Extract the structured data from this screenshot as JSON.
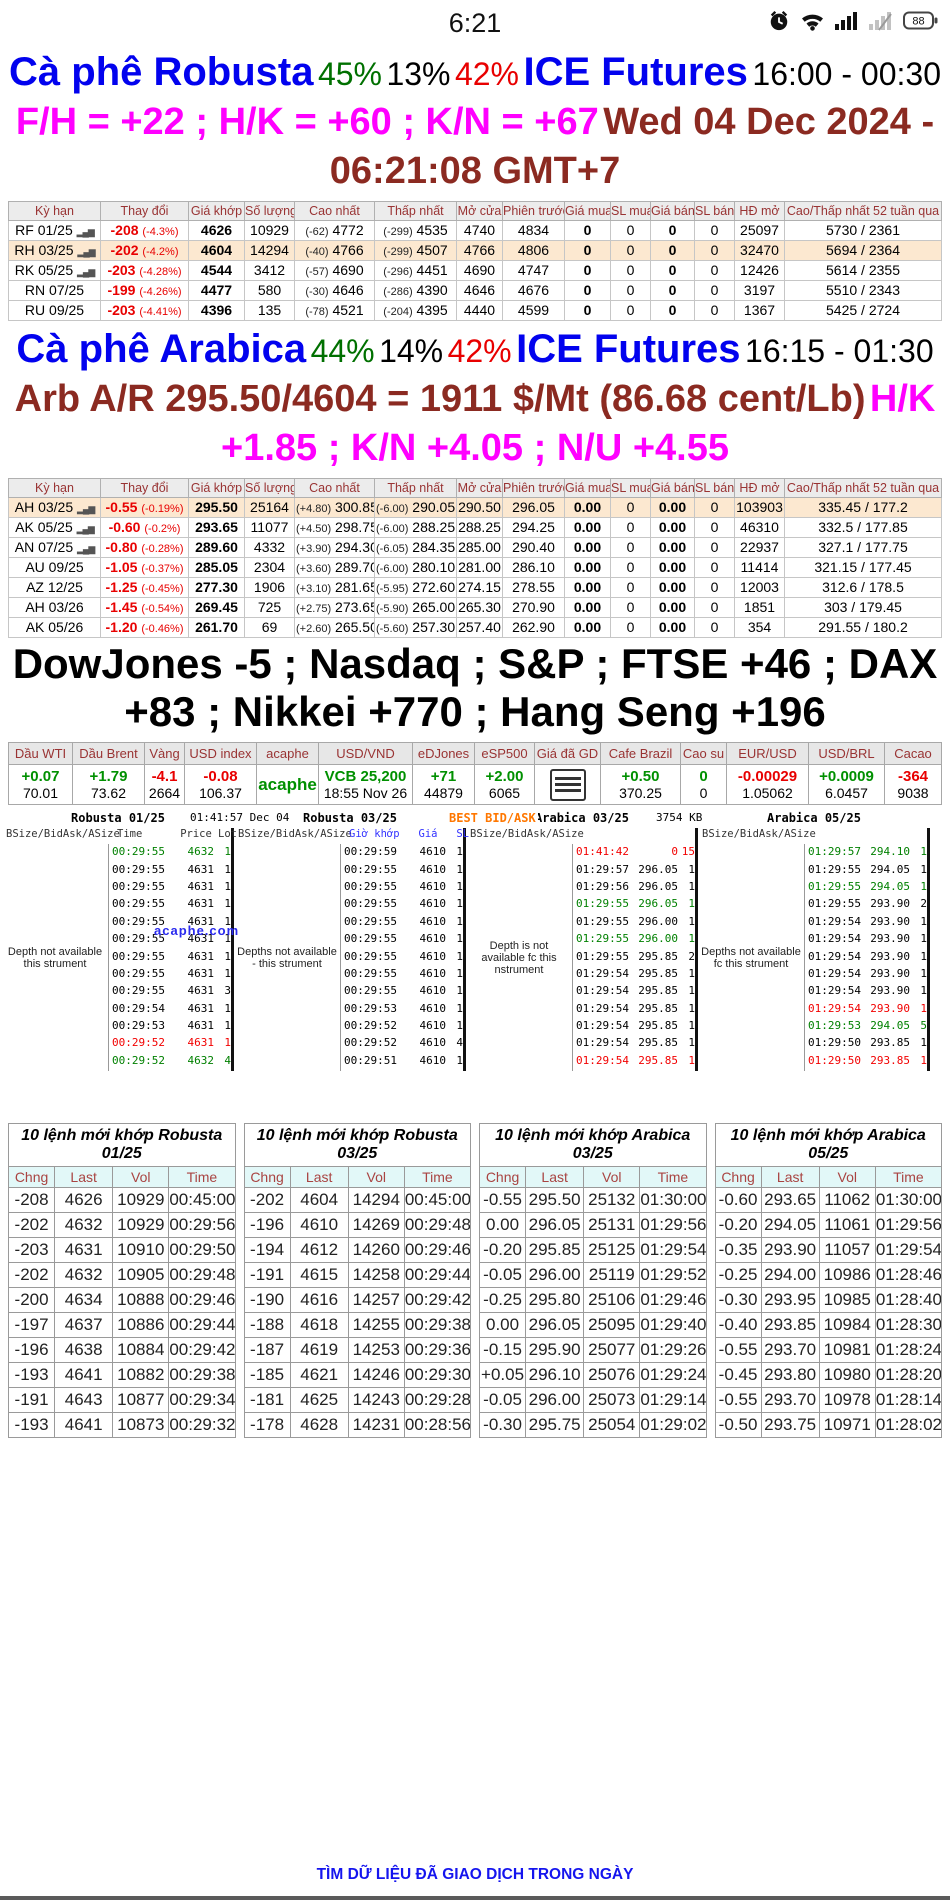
{
  "status_bar": {
    "time": "6:21",
    "battery": "88"
  },
  "robusta_header": {
    "title": "Cà phê Robusta",
    "p1": "45%",
    "p2": "13%",
    "p3": "42%",
    "exchange": "ICE Futures",
    "session": "16:00 - 00:30",
    "spreads": "F/H = +22 ; H/K = +60 ; K/N = +67",
    "datetime": "Wed 04 Dec 2024 - 06:21:08 GMT+7"
  },
  "arabica_header": {
    "title": "Cà phê Arabica",
    "p1": "44%",
    "p2": "14%",
    "p3": "42%",
    "exchange": "ICE Futures",
    "session": "16:15 - 01:30",
    "quote": "Arb A/R 295.50/4604 = 1911 $/Mt (86.68 cent/Lb)",
    "spreads": "H/K +1.85 ; K/N +4.05 ; N/U +4.55"
  },
  "futures_cols": [
    "Kỳ hạn",
    "Thay đổi",
    "Giá khớp",
    "Số lượng",
    "Cao nhất",
    "Thấp nhất",
    "Mở cửa",
    "Phiên trước",
    "Giá mua",
    "SL mua",
    "Giá bán",
    "SL bán",
    "HĐ mở",
    "Cao/Thấp nhất 52 tuần qua"
  ],
  "robusta_rows": [
    {
      "c": "RF 01/25",
      "chart": true,
      "ch": "-208",
      "pct": "(-4.3%)",
      "last": "4626",
      "vol": "10929",
      "hd": "(-62)",
      "hi": "4772",
      "ld": "(-299)",
      "lo": "4535",
      "op": "4740",
      "pr": "4834",
      "b": "0",
      "bs": "0",
      "a": "0",
      "as": "0",
      "oi": "25097",
      "r52": "5730 / 2361",
      "hl": false
    },
    {
      "c": "RH 03/25",
      "chart": true,
      "ch": "-202",
      "pct": "(-4.2%)",
      "last": "4604",
      "vol": "14294",
      "hd": "(-40)",
      "hi": "4766",
      "ld": "(-299)",
      "lo": "4507",
      "op": "4766",
      "pr": "4806",
      "b": "0",
      "bs": "0",
      "a": "0",
      "as": "0",
      "oi": "32470",
      "r52": "5694 / 2364",
      "hl": true
    },
    {
      "c": "RK 05/25",
      "chart": true,
      "ch": "-203",
      "pct": "(-4.28%)",
      "last": "4544",
      "vol": "3412",
      "hd": "(-57)",
      "hi": "4690",
      "ld": "(-296)",
      "lo": "4451",
      "op": "4690",
      "pr": "4747",
      "b": "0",
      "bs": "0",
      "a": "0",
      "as": "0",
      "oi": "12426",
      "r52": "5614 / 2355",
      "hl": false
    },
    {
      "c": "RN 07/25",
      "chart": false,
      "ch": "-199",
      "pct": "(-4.26%)",
      "last": "4477",
      "vol": "580",
      "hd": "(-30)",
      "hi": "4646",
      "ld": "(-286)",
      "lo": "4390",
      "op": "4646",
      "pr": "4676",
      "b": "0",
      "bs": "0",
      "a": "0",
      "as": "0",
      "oi": "3197",
      "r52": "5510 / 2343",
      "hl": false
    },
    {
      "c": "RU 09/25",
      "chart": false,
      "ch": "-203",
      "pct": "(-4.41%)",
      "last": "4396",
      "vol": "135",
      "hd": "(-78)",
      "hi": "4521",
      "ld": "(-204)",
      "lo": "4395",
      "op": "4440",
      "pr": "4599",
      "b": "0",
      "bs": "0",
      "a": "0",
      "as": "0",
      "oi": "1367",
      "r52": "5425 / 2724",
      "hl": false
    }
  ],
  "arabica_rows": [
    {
      "c": "AH 03/25",
      "chart": true,
      "ch": "-0.55",
      "pct": "(-0.19%)",
      "last": "295.50",
      "vol": "25164",
      "hd": "(+4.80)",
      "hi": "300.85",
      "ld": "(-6.00)",
      "lo": "290.05",
      "op": "290.50",
      "pr": "296.05",
      "b": "0.00",
      "bs": "0",
      "a": "0.00",
      "as": "0",
      "oi": "103903",
      "r52": "335.45 / 177.2",
      "hl": true
    },
    {
      "c": "AK 05/25",
      "chart": true,
      "ch": "-0.60",
      "pct": "(-0.2%)",
      "last": "293.65",
      "vol": "11077",
      "hd": "(+4.50)",
      "hi": "298.75",
      "ld": "(-6.00)",
      "lo": "288.25",
      "op": "288.25",
      "pr": "294.25",
      "b": "0.00",
      "bs": "0",
      "a": "0.00",
      "as": "0",
      "oi": "46310",
      "r52": "332.5 / 177.85",
      "hl": false
    },
    {
      "c": "AN 07/25",
      "chart": true,
      "ch": "-0.80",
      "pct": "(-0.28%)",
      "last": "289.60",
      "vol": "4332",
      "hd": "(+3.90)",
      "hi": "294.30",
      "ld": "(-6.05)",
      "lo": "284.35",
      "op": "285.00",
      "pr": "290.40",
      "b": "0.00",
      "bs": "0",
      "a": "0.00",
      "as": "0",
      "oi": "22937",
      "r52": "327.1 / 177.75",
      "hl": false
    },
    {
      "c": "AU 09/25",
      "chart": false,
      "ch": "-1.05",
      "pct": "(-0.37%)",
      "last": "285.05",
      "vol": "2304",
      "hd": "(+3.60)",
      "hi": "289.70",
      "ld": "(-6.00)",
      "lo": "280.10",
      "op": "281.00",
      "pr": "286.10",
      "b": "0.00",
      "bs": "0",
      "a": "0.00",
      "as": "0",
      "oi": "11414",
      "r52": "321.15 / 177.45",
      "hl": false
    },
    {
      "c": "AZ 12/25",
      "chart": false,
      "ch": "-1.25",
      "pct": "(-0.45%)",
      "last": "277.30",
      "vol": "1906",
      "hd": "(+3.10)",
      "hi": "281.65",
      "ld": "(-5.95)",
      "lo": "272.60",
      "op": "274.15",
      "pr": "278.55",
      "b": "0.00",
      "bs": "0",
      "a": "0.00",
      "as": "0",
      "oi": "12003",
      "r52": "312.6 / 178.5",
      "hl": false
    },
    {
      "c": "AH 03/26",
      "chart": false,
      "ch": "-1.45",
      "pct": "(-0.54%)",
      "last": "269.45",
      "vol": "725",
      "hd": "(+2.75)",
      "hi": "273.65",
      "ld": "(-5.90)",
      "lo": "265.00",
      "op": "265.30",
      "pr": "270.90",
      "b": "0.00",
      "bs": "0",
      "a": "0.00",
      "as": "0",
      "oi": "1851",
      "r52": "303 / 179.45",
      "hl": false
    },
    {
      "c": "AK 05/26",
      "chart": false,
      "ch": "-1.20",
      "pct": "(-0.46%)",
      "last": "261.70",
      "vol": "69",
      "hd": "(+2.60)",
      "hi": "265.50",
      "ld": "(-5.60)",
      "lo": "257.30",
      "op": "257.40",
      "pr": "262.90",
      "b": "0.00",
      "bs": "0",
      "a": "0.00",
      "as": "0",
      "oi": "354",
      "r52": "291.55 / 180.2",
      "hl": false
    }
  ],
  "indices_line": "DowJones -5 ; Nasdaq ; S&P ; FTSE +46 ; DAX +83 ; Nikkei +770 ; Hang Seng +196",
  "indices": [
    {
      "label": "Dầu WTI",
      "value": "+0.07",
      "color": "green",
      "sub": "70.01"
    },
    {
      "label": "Dầu Brent",
      "value": "+1.79",
      "color": "green",
      "sub": "73.62"
    },
    {
      "label": "Vàng",
      "value": "-4.1",
      "color": "red",
      "sub": "2664"
    },
    {
      "label": "USD index",
      "value": "-0.08",
      "color": "red",
      "sub": "106.37"
    },
    {
      "label": "acaphe",
      "value": "acaphe",
      "color": "green",
      "big": true
    },
    {
      "label": "USD/VND",
      "value": "VCB 25,200",
      "color": "green",
      "sub": "18:55 Nov 26"
    },
    {
      "label": "eDJones",
      "value": "+71",
      "color": "green",
      "sub": "44879"
    },
    {
      "label": "eSP500",
      "value": "+2.00",
      "color": "green",
      "sub": "6065"
    },
    {
      "label": "Giá đã GD",
      "icon": "menu"
    },
    {
      "label": "Cafe Brazil",
      "value": "+0.50",
      "color": "green",
      "sub": "370.25"
    },
    {
      "label": "Cao su",
      "value": "0",
      "color": "green",
      "sub": "0"
    },
    {
      "label": "EUR/USD",
      "value": "-0.00029",
      "color": "red",
      "sub": "1.05062"
    },
    {
      "label": "USD/BRL",
      "value": "+0.0009",
      "color": "green",
      "sub": "6.0457"
    },
    {
      "label": "Cacao",
      "value": "-364",
      "color": "red",
      "sub": "9038"
    }
  ],
  "depth": {
    "timestamp": "01:41:57 Dec 04",
    "best_label": "BEST BID/ASK",
    "size_label": "3754 KB",
    "watermark": "acaphe.com",
    "panels": [
      {
        "title": "Robusta 01/25",
        "cols": [
          "BSize/Bid",
          "Ask/ASize"
        ],
        "tcols": [
          "Time",
          "Price",
          "Lot"
        ],
        "tblue": false,
        "note": "Depth not available this strument",
        "trades": [
          [
            "00:29:55",
            "4632",
            "1",
            "g"
          ],
          [
            "00:29:55",
            "4631",
            "1",
            ""
          ],
          [
            "00:29:55",
            "4631",
            "1",
            ""
          ],
          [
            "00:29:55",
            "4631",
            "1",
            ""
          ],
          [
            "00:29:55",
            "4631",
            "1",
            ""
          ],
          [
            "00:29:55",
            "4631",
            "1",
            ""
          ],
          [
            "00:29:55",
            "4631",
            "1",
            ""
          ],
          [
            "00:29:55",
            "4631",
            "1",
            ""
          ],
          [
            "00:29:55",
            "4631",
            "3",
            ""
          ],
          [
            "00:29:54",
            "4631",
            "1",
            ""
          ],
          [
            "00:29:53",
            "4631",
            "1",
            ""
          ],
          [
            "00:29:52",
            "4631",
            "1",
            "r"
          ],
          [
            "00:29:52",
            "4632",
            "4",
            "g"
          ]
        ]
      },
      {
        "title": "Robusta 03/25",
        "cols": [
          "BSize/Bid",
          "Ask/ASize"
        ],
        "tcols": [
          "Giờ khớp",
          "Giá",
          "SL"
        ],
        "tblue": true,
        "note": "Depths not available - this strument",
        "trades": [
          [
            "00:29:59",
            "4610",
            "1",
            ""
          ],
          [
            "00:29:55",
            "4610",
            "1",
            ""
          ],
          [
            "00:29:55",
            "4610",
            "1",
            ""
          ],
          [
            "00:29:55",
            "4610",
            "1",
            ""
          ],
          [
            "00:29:55",
            "4610",
            "1",
            ""
          ],
          [
            "00:29:55",
            "4610",
            "1",
            ""
          ],
          [
            "00:29:55",
            "4610",
            "1",
            ""
          ],
          [
            "00:29:55",
            "4610",
            "1",
            ""
          ],
          [
            "00:29:55",
            "4610",
            "1",
            ""
          ],
          [
            "00:29:53",
            "4610",
            "1",
            ""
          ],
          [
            "00:29:52",
            "4610",
            "1",
            ""
          ],
          [
            "00:29:52",
            "4610",
            "4",
            ""
          ],
          [
            "00:29:51",
            "4610",
            "1",
            ""
          ]
        ]
      },
      {
        "title": "Arabica 03/25",
        "cols": [
          "BSize/Bid",
          "Ask/ASize"
        ],
        "tcols": [],
        "tblue": false,
        "note": "Depth is not available fc this nstrument",
        "trades": [
          [
            "01:41:42",
            "0",
            "15",
            "r"
          ],
          [
            "01:29:57",
            "296.05",
            "1",
            ""
          ],
          [
            "01:29:56",
            "296.05",
            "1",
            ""
          ],
          [
            "01:29:55",
            "296.05",
            "1",
            "g"
          ],
          [
            "01:29:55",
            "296.00",
            "1",
            ""
          ],
          [
            "01:29:55",
            "296.00",
            "1",
            "g"
          ],
          [
            "01:29:55",
            "295.85",
            "2",
            ""
          ],
          [
            "01:29:54",
            "295.85",
            "1",
            ""
          ],
          [
            "01:29:54",
            "295.85",
            "1",
            ""
          ],
          [
            "01:29:54",
            "295.85",
            "1",
            ""
          ],
          [
            "01:29:54",
            "295.85",
            "1",
            ""
          ],
          [
            "01:29:54",
            "295.85",
            "1",
            ""
          ],
          [
            "01:29:54",
            "295.85",
            "1",
            "r"
          ]
        ]
      },
      {
        "title": "Arabica 05/25",
        "cols": [
          "BSize/Bid",
          "Ask/ASize"
        ],
        "tcols": [],
        "tblue": false,
        "note": "Depths not available fc this strument",
        "trades": [
          [
            "01:29:57",
            "294.10",
            "1",
            "g"
          ],
          [
            "01:29:55",
            "294.05",
            "1",
            ""
          ],
          [
            "01:29:55",
            "294.05",
            "1",
            "g"
          ],
          [
            "01:29:55",
            "293.90",
            "2",
            ""
          ],
          [
            "01:29:54",
            "293.90",
            "1",
            ""
          ],
          [
            "01:29:54",
            "293.90",
            "1",
            ""
          ],
          [
            "01:29:54",
            "293.90",
            "1",
            ""
          ],
          [
            "01:29:54",
            "293.90",
            "1",
            ""
          ],
          [
            "01:29:54",
            "293.90",
            "1",
            ""
          ],
          [
            "01:29:54",
            "293.90",
            "1",
            "r"
          ],
          [
            "01:29:53",
            "294.05",
            "5",
            "g"
          ],
          [
            "01:29:50",
            "293.85",
            "1",
            ""
          ],
          [
            "01:29:50",
            "293.85",
            "1",
            "r"
          ]
        ]
      }
    ]
  },
  "order_tables": [
    {
      "title": "10 lệnh mới khớp Robusta 01/25",
      "cols": [
        "Chng",
        "Last",
        "Vol",
        "Time"
      ],
      "rows": [
        [
          "-208",
          "4626",
          "10929",
          "00:45:00"
        ],
        [
          "-202",
          "4632",
          "10929",
          "00:29:56"
        ],
        [
          "-203",
          "4631",
          "10910",
          "00:29:50"
        ],
        [
          "-202",
          "4632",
          "10905",
          "00:29:48"
        ],
        [
          "-200",
          "4634",
          "10888",
          "00:29:46"
        ],
        [
          "-197",
          "4637",
          "10886",
          "00:29:44"
        ],
        [
          "-196",
          "4638",
          "10884",
          "00:29:42"
        ],
        [
          "-193",
          "4641",
          "10882",
          "00:29:38"
        ],
        [
          "-191",
          "4643",
          "10877",
          "00:29:34"
        ],
        [
          "-193",
          "4641",
          "10873",
          "00:29:32"
        ]
      ]
    },
    {
      "title": "10 lệnh mới khớp Robusta 03/25",
      "cols": [
        "Chng",
        "Last",
        "Vol",
        "Time"
      ],
      "rows": [
        [
          "-202",
          "4604",
          "14294",
          "00:45:00"
        ],
        [
          "-196",
          "4610",
          "14269",
          "00:29:48"
        ],
        [
          "-194",
          "4612",
          "14260",
          "00:29:46"
        ],
        [
          "-191",
          "4615",
          "14258",
          "00:29:44"
        ],
        [
          "-190",
          "4616",
          "14257",
          "00:29:42"
        ],
        [
          "-188",
          "4618",
          "14255",
          "00:29:38"
        ],
        [
          "-187",
          "4619",
          "14253",
          "00:29:36"
        ],
        [
          "-185",
          "4621",
          "14246",
          "00:29:30"
        ],
        [
          "-181",
          "4625",
          "14243",
          "00:29:28"
        ],
        [
          "-178",
          "4628",
          "14231",
          "00:28:56"
        ]
      ]
    },
    {
      "title": "10 lệnh mới khớp Arabica 03/25",
      "cols": [
        "Chng",
        "Last",
        "Vol",
        "Time"
      ],
      "rows": [
        [
          "-0.55",
          "295.50",
          "25132",
          "01:30:00"
        ],
        [
          "0.00",
          "296.05",
          "25131",
          "01:29:56"
        ],
        [
          "-0.20",
          "295.85",
          "25125",
          "01:29:54"
        ],
        [
          "-0.05",
          "296.00",
          "25119",
          "01:29:52"
        ],
        [
          "-0.25",
          "295.80",
          "25106",
          "01:29:46"
        ],
        [
          "0.00",
          "296.05",
          "25095",
          "01:29:40"
        ],
        [
          "-0.15",
          "295.90",
          "25077",
          "01:29:26"
        ],
        [
          "+0.05",
          "296.10",
          "25076",
          "01:29:24"
        ],
        [
          "-0.05",
          "296.00",
          "25073",
          "01:29:14"
        ],
        [
          "-0.30",
          "295.75",
          "25054",
          "01:29:02"
        ]
      ]
    },
    {
      "title": "10 lệnh mới khớp Arabica 05/25",
      "cols": [
        "Chng",
        "Last",
        "Vol",
        "Time"
      ],
      "rows": [
        [
          "-0.60",
          "293.65",
          "11062",
          "01:30:00"
        ],
        [
          "-0.20",
          "294.05",
          "11061",
          "01:29:56"
        ],
        [
          "-0.35",
          "293.90",
          "11057",
          "01:29:54"
        ],
        [
          "-0.25",
          "294.00",
          "10986",
          "01:28:46"
        ],
        [
          "-0.30",
          "293.95",
          "10985",
          "01:28:40"
        ],
        [
          "-0.40",
          "293.85",
          "10984",
          "01:28:30"
        ],
        [
          "-0.55",
          "293.70",
          "10981",
          "01:28:24"
        ],
        [
          "-0.45",
          "293.80",
          "10980",
          "01:28:20"
        ],
        [
          "-0.55",
          "293.70",
          "10978",
          "01:28:14"
        ],
        [
          "-0.50",
          "293.75",
          "10971",
          "01:28:02"
        ]
      ]
    }
  ],
  "footer": {
    "link": "TÌM DỮ LIỆU ĐÃ GIAO DỊCH TRONG NGÀY"
  }
}
